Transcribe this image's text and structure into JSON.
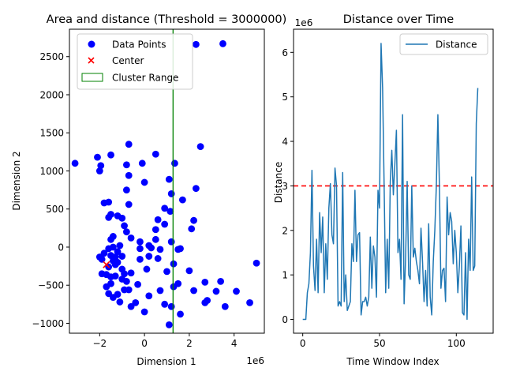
{
  "chart_data": [
    {
      "type": "scatter",
      "title": "Area and distance (Threshold = 3000000)",
      "xlabel": "Dimension 1",
      "ylabel": "Dimension 2",
      "x_scale_label": "1e6",
      "xlim": [
        -3.35,
        5.35
      ],
      "ylim": [
        -1130,
        2860
      ],
      "xticks": [
        -2,
        0,
        2,
        4
      ],
      "yticks": [
        -1000,
        -500,
        0,
        500,
        1000,
        1500,
        2000,
        2500
      ],
      "grid": false,
      "legend_position": "upper-left",
      "legend": [
        {
          "label": "Data Points",
          "marker": "circle",
          "color": "#0000ff"
        },
        {
          "label": "Center",
          "marker": "x",
          "color": "#ff0000"
        },
        {
          "label": "Cluster Range",
          "marker": "rect",
          "color": "#008000"
        }
      ],
      "cluster_range_x": [
        1.25,
        1.3
      ],
      "center": {
        "x": -1.7,
        "y": -230
      },
      "points": [
        [
          -3.1,
          1100
        ],
        [
          -2.1,
          1180
        ],
        [
          -1.95,
          1070
        ],
        [
          -2.0,
          1000
        ],
        [
          -1.5,
          1210
        ],
        [
          -0.7,
          1350
        ],
        [
          -0.1,
          1100
        ],
        [
          0.5,
          1220
        ],
        [
          1.35,
          1100
        ],
        [
          2.5,
          1320
        ],
        [
          1.1,
          890
        ],
        [
          0.0,
          850
        ],
        [
          -0.7,
          940
        ],
        [
          -0.8,
          1080
        ],
        [
          -0.8,
          750
        ],
        [
          -1.8,
          580
        ],
        [
          -1.6,
          590
        ],
        [
          -0.7,
          560
        ],
        [
          -1.5,
          430
        ],
        [
          -1.2,
          410
        ],
        [
          -1.6,
          390
        ],
        [
          -1.0,
          380
        ],
        [
          -0.9,
          280
        ],
        [
          -0.8,
          200
        ],
        [
          -0.6,
          120
        ],
        [
          -1.4,
          140
        ],
        [
          -1.5,
          100
        ],
        [
          -1.1,
          20
        ],
        [
          0.9,
          510
        ],
        [
          1.15,
          470
        ],
        [
          1.2,
          700
        ],
        [
          0.6,
          360
        ],
        [
          0.9,
          300
        ],
        [
          0.5,
          230
        ],
        [
          1.7,
          620
        ],
        [
          2.3,
          770
        ],
        [
          2.2,
          350
        ],
        [
          2.1,
          240
        ],
        [
          0.5,
          100
        ],
        [
          0.7,
          -30
        ],
        [
          1.2,
          70
        ],
        [
          1.5,
          -30
        ],
        [
          1.6,
          -20
        ],
        [
          1.3,
          -220
        ],
        [
          2.0,
          -310
        ],
        [
          1.0,
          -320
        ],
        [
          1.5,
          -480
        ],
        [
          1.3,
          -520
        ],
        [
          0.7,
          -570
        ],
        [
          2.2,
          -570
        ],
        [
          2.7,
          -460
        ],
        [
          3.4,
          -450
        ],
        [
          3.2,
          -580
        ],
        [
          2.8,
          -700
        ],
        [
          2.7,
          -730
        ],
        [
          3.6,
          -780
        ],
        [
          4.1,
          -580
        ],
        [
          4.7,
          -730
        ],
        [
          5.0,
          -210
        ],
        [
          1.2,
          -780
        ],
        [
          0.9,
          -750
        ],
        [
          1.6,
          -880
        ],
        [
          1.1,
          -1020
        ],
        [
          0.0,
          -850
        ],
        [
          -0.6,
          -780
        ],
        [
          -0.4,
          -730
        ],
        [
          -1.1,
          -720
        ],
        [
          -1.4,
          -660
        ],
        [
          -1.2,
          -620
        ],
        [
          -0.9,
          -560
        ],
        [
          -0.7,
          -560
        ],
        [
          -1.6,
          -610
        ],
        [
          -1.7,
          -520
        ],
        [
          -1.5,
          -480
        ],
        [
          -0.3,
          -490
        ],
        [
          -0.8,
          -450
        ],
        [
          -1.0,
          -420
        ],
        [
          -1.9,
          -350
        ],
        [
          -1.7,
          -360
        ],
        [
          -1.5,
          -390
        ],
        [
          -1.3,
          -380
        ],
        [
          -0.9,
          -350
        ],
        [
          -0.6,
          -340
        ],
        [
          -1.0,
          -290
        ],
        [
          -1.3,
          -230
        ],
        [
          -1.2,
          -200
        ],
        [
          -1.4,
          -180
        ],
        [
          -1.6,
          -260
        ],
        [
          -2.0,
          -130
        ],
        [
          -1.8,
          -80
        ],
        [
          -1.9,
          -160
        ],
        [
          -1.5,
          -110
        ],
        [
          -1.3,
          -130
        ],
        [
          -1.0,
          -120
        ],
        [
          -1.6,
          -20
        ],
        [
          -1.4,
          0
        ],
        [
          -1.2,
          -60
        ],
        [
          -0.2,
          70
        ],
        [
          -0.2,
          -20
        ],
        [
          0.2,
          20
        ],
        [
          0.3,
          -10
        ],
        [
          0.2,
          -120
        ],
        [
          -0.2,
          -160
        ],
        [
          0.1,
          -290
        ],
        [
          0.2,
          -640
        ],
        [
          0.6,
          -150
        ],
        [
          2.3,
          2660
        ],
        [
          3.5,
          2670
        ]
      ]
    },
    {
      "type": "line",
      "title": "Distance over Time",
      "xlabel": "Time Window Index",
      "ylabel": "Distance",
      "y_scale_label": "1e6",
      "xlim": [
        -6,
        124
      ],
      "ylim": [
        -0.31,
        6.52
      ],
      "xticks": [
        0,
        50,
        100
      ],
      "yticks": [
        0,
        1,
        2,
        3,
        4,
        5,
        6
      ],
      "threshold": 3,
      "threshold_color": "#ff0000",
      "series_color": "#1f77b4",
      "grid": false,
      "legend_position": "upper-right",
      "series": [
        {
          "name": "Distance",
          "values": [
            0.0,
            0.0,
            0.0,
            0.6,
            0.8,
            1.5,
            3.35,
            1.2,
            0.65,
            1.8,
            0.6,
            2.4,
            1.5,
            2.3,
            0.6,
            1.7,
            0.9,
            2.5,
            3.05,
            1.9,
            1.7,
            3.4,
            3.0,
            0.3,
            0.4,
            0.3,
            3.3,
            0.4,
            1.0,
            0.2,
            0.3,
            0.4,
            1.7,
            1.3,
            2.9,
            1.3,
            1.9,
            1.95,
            0.1,
            0.4,
            0.4,
            0.5,
            0.3,
            0.5,
            1.85,
            0.7,
            1.65,
            1.4,
            0.5,
            2.9,
            2.5,
            6.2,
            5.2,
            3.0,
            0.6,
            1.8,
            0.7,
            3.1,
            3.8,
            2.8,
            3.5,
            4.25,
            1.5,
            1.8,
            0.9,
            4.6,
            0.35,
            1.4,
            3.1,
            1.0,
            0.9,
            3.0,
            1.4,
            1.6,
            1.3,
            1.1,
            0.8,
            2.05,
            1.3,
            0.4,
            1.1,
            0.3,
            2.15,
            0.5,
            0.1,
            1.3,
            2.0,
            3.0,
            4.6,
            3.0,
            0.7,
            1.1,
            1.15,
            0.4,
            2.75,
            1.9,
            2.4,
            2.2,
            1.25,
            2.0,
            1.5,
            0.6,
            1.2,
            2.1,
            0.15,
            0.1,
            1.5,
            0.0,
            1.8,
            1.1,
            3.2,
            1.1,
            1.2,
            4.4,
            5.2
          ]
        }
      ]
    }
  ]
}
